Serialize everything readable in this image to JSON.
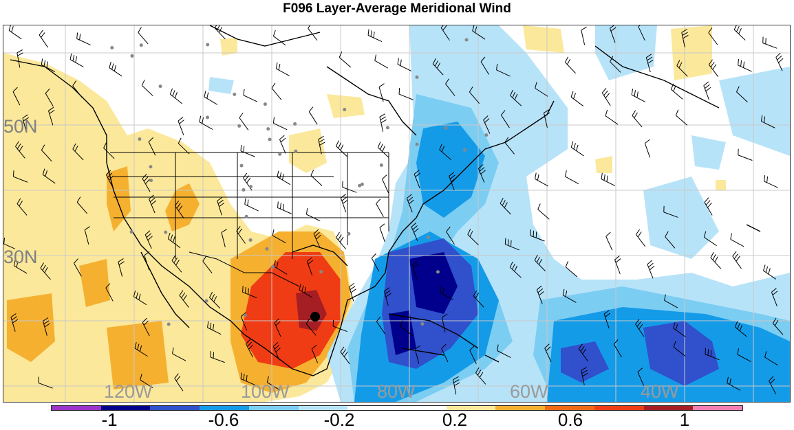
{
  "title": "F096 Layer-Average Meridional Wind",
  "lat_labels": [
    "50N",
    "30N"
  ],
  "lon_labels": [
    "120W",
    "100W",
    "80W",
    "60W",
    "40W"
  ],
  "colorbar": {
    "ticks": [
      "-1",
      "-0.6",
      "-0.2",
      "0.2",
      "0.6",
      "1"
    ],
    "colors": [
      "#9a35c9",
      "#00008c",
      "#3050cc",
      "#149be8",
      "#7ccdf2",
      "#b7e3f9",
      "#ffffff",
      "#ffffff",
      "#fbe89a",
      "#f5b030",
      "#f06a14",
      "#f03c14",
      "#a51e24",
      "#f57fb4"
    ]
  },
  "field_colors": {
    "strong_positive": "#a51e24",
    "positive_3": "#f03c14",
    "positive_2": "#f5b030",
    "positive_1": "#fbe89a",
    "negative_1": "#b7e3f9",
    "negative_2": "#7ccdf2",
    "negative_3": "#149be8",
    "negative_4": "#3050cc",
    "strong_negative": "#00008c"
  },
  "marker_color": "#000000"
}
